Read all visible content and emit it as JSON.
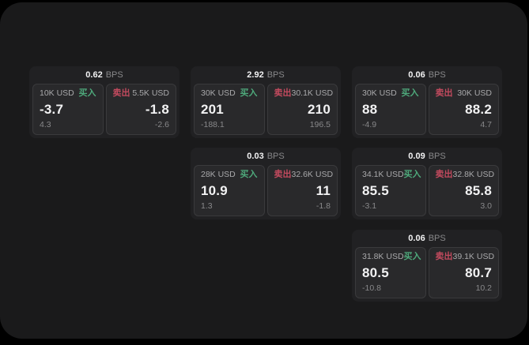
{
  "labels": {
    "bps_unit": "BPS",
    "buy": "买入",
    "sell": "卖出"
  },
  "colors": {
    "background": "#000000",
    "panel": "#1a1a1b",
    "card": "#212123",
    "inner_tile": "#29292b",
    "tile_border": "#3a3a3c",
    "text_primary": "#f2f2f3",
    "text_label": "#a9a9ab",
    "text_muted": "#88888a",
    "buy_green": "#4ea97b",
    "sell_red": "#c24a5e"
  },
  "cards": [
    {
      "bps": "0.62",
      "row": 1,
      "col": 1,
      "buy": {
        "amount": "10K USD",
        "price": "-3.7",
        "delta": "4.3"
      },
      "sell": {
        "amount": "5.5K USD",
        "price": "-1.8",
        "delta": "-2.6"
      }
    },
    {
      "bps": "2.92",
      "row": 1,
      "col": 2,
      "buy": {
        "amount": "30K USD",
        "price": "201",
        "delta": "-188.1"
      },
      "sell": {
        "amount": "30.1K USD",
        "price": "210",
        "delta": "196.5"
      }
    },
    {
      "bps": "0.06",
      "row": 1,
      "col": 3,
      "buy": {
        "amount": "30K USD",
        "price": "88",
        "delta": "-4.9"
      },
      "sell": {
        "amount": "30K USD",
        "price": "88.2",
        "delta": "4.7"
      }
    },
    {
      "bps": "0.03",
      "row": 2,
      "col": 2,
      "buy": {
        "amount": "28K USD",
        "price": "10.9",
        "delta": "1.3"
      },
      "sell": {
        "amount": "32.6K USD",
        "price": "11",
        "delta": "-1.8"
      }
    },
    {
      "bps": "0.09",
      "row": 2,
      "col": 3,
      "buy": {
        "amount": "34.1K USD",
        "price": "85.5",
        "delta": "-3.1"
      },
      "sell": {
        "amount": "32.8K USD",
        "price": "85.8",
        "delta": "3.0"
      }
    },
    {
      "bps": "0.06",
      "row": 3,
      "col": 3,
      "buy": {
        "amount": "31.8K USD",
        "price": "80.5",
        "delta": "-10.8"
      },
      "sell": {
        "amount": "39.1K USD",
        "price": "80.7",
        "delta": "10.2"
      }
    }
  ]
}
